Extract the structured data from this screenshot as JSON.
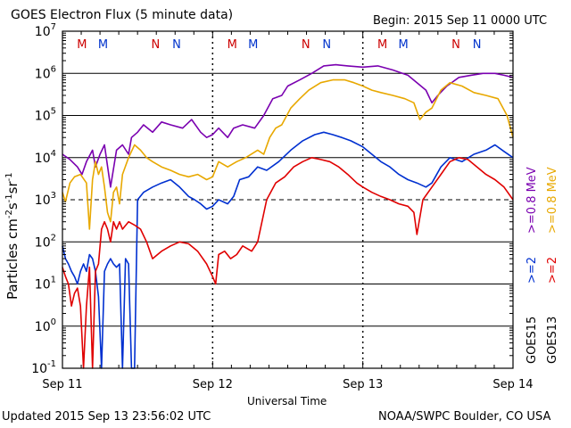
{
  "header": {
    "title": "GOES Electron Flux (5 minute data)",
    "begin": "Begin: 2015 Sep 11 0000 UTC"
  },
  "footer": {
    "updated": "Updated 2015 Sep 13 23:56:02 UTC",
    "credit": "NOAA/SWPC Boulder, CO USA"
  },
  "legend": {
    "goes15": "GOES15",
    "goes13": "GOES13",
    "g15_low": ">=2",
    "g15_high": ">=0.8 MeV",
    "g13_low": ">=2",
    "g13_high": ">=0.8 MeV"
  },
  "chart_data": {
    "type": "line",
    "title": "GOES Electron Flux (5 minute data)",
    "xlabel": "Universal Time",
    "ylabel": "Particles cm^-2 s^-1 sr^-1",
    "yscale": "log",
    "ylim": [
      0.1,
      10000000
    ],
    "xlim_days": [
      0,
      3
    ],
    "x_tick_labels": [
      "Sep 11",
      "Sep 12",
      "Sep 13",
      "Sep 14"
    ],
    "y_ticks": [
      {
        "base": "10",
        "exp": "-1"
      },
      {
        "base": "10",
        "exp": "0"
      },
      {
        "base": "10",
        "exp": "1"
      },
      {
        "base": "10",
        "exp": "2"
      },
      {
        "base": "10",
        "exp": "3"
      },
      {
        "base": "10",
        "exp": "4"
      },
      {
        "base": "10",
        "exp": "5"
      },
      {
        "base": "10",
        "exp": "6"
      },
      {
        "base": "10",
        "exp": "7"
      }
    ],
    "threshold": 1000,
    "markers": [
      {
        "label": "M",
        "day": 0.13,
        "color": "#cc0000"
      },
      {
        "label": "M",
        "day": 0.27,
        "color": "#0033cc"
      },
      {
        "label": "N",
        "day": 0.62,
        "color": "#cc0000"
      },
      {
        "label": "N",
        "day": 0.76,
        "color": "#0033cc"
      },
      {
        "label": "M",
        "day": 1.13,
        "color": "#cc0000"
      },
      {
        "label": "M",
        "day": 1.27,
        "color": "#0033cc"
      },
      {
        "label": "N",
        "day": 1.62,
        "color": "#cc0000"
      },
      {
        "label": "N",
        "day": 1.76,
        "color": "#0033cc"
      },
      {
        "label": "M",
        "day": 2.13,
        "color": "#cc0000"
      },
      {
        "label": "M",
        "day": 2.27,
        "color": "#0033cc"
      },
      {
        "label": "N",
        "day": 2.62,
        "color": "#cc0000"
      },
      {
        "label": "N",
        "day": 2.76,
        "color": "#0033cc"
      }
    ],
    "series": [
      {
        "name": "GOES15 >=0.8 MeV",
        "color": "#7a00b0",
        "points": [
          [
            0,
            12000
          ],
          [
            0.05,
            9000
          ],
          [
            0.1,
            6000
          ],
          [
            0.13,
            4000
          ],
          [
            0.16,
            8000
          ],
          [
            0.2,
            15000
          ],
          [
            0.22,
            6000
          ],
          [
            0.25,
            12000
          ],
          [
            0.28,
            20000
          ],
          [
            0.32,
            2000
          ],
          [
            0.36,
            15000
          ],
          [
            0.4,
            20000
          ],
          [
            0.44,
            12000
          ],
          [
            0.46,
            30000
          ],
          [
            0.5,
            40000
          ],
          [
            0.54,
            60000
          ],
          [
            0.6,
            40000
          ],
          [
            0.66,
            70000
          ],
          [
            0.72,
            60000
          ],
          [
            0.8,
            50000
          ],
          [
            0.86,
            80000
          ],
          [
            0.92,
            40000
          ],
          [
            0.96,
            30000
          ],
          [
            1.0,
            35000
          ],
          [
            1.04,
            50000
          ],
          [
            1.1,
            30000
          ],
          [
            1.14,
            50000
          ],
          [
            1.2,
            60000
          ],
          [
            1.28,
            50000
          ],
          [
            1.34,
            100000
          ],
          [
            1.4,
            250000
          ],
          [
            1.46,
            300000
          ],
          [
            1.5,
            500000
          ],
          [
            1.58,
            700000
          ],
          [
            1.66,
            1000000
          ],
          [
            1.74,
            1500000
          ],
          [
            1.82,
            1600000
          ],
          [
            1.9,
            1500000
          ],
          [
            2.0,
            1400000
          ],
          [
            2.1,
            1500000
          ],
          [
            2.2,
            1200000
          ],
          [
            2.3,
            900000
          ],
          [
            2.36,
            600000
          ],
          [
            2.42,
            400000
          ],
          [
            2.46,
            200000
          ],
          [
            2.5,
            300000
          ],
          [
            2.56,
            500000
          ],
          [
            2.64,
            800000
          ],
          [
            2.72,
            900000
          ],
          [
            2.8,
            1000000
          ],
          [
            2.88,
            1000000
          ],
          [
            2.94,
            900000
          ],
          [
            3.0,
            800000
          ]
        ]
      },
      {
        "name": "GOES13 >=0.8 MeV",
        "color": "#e8a800",
        "points": [
          [
            0,
            1500
          ],
          [
            0.02,
            900
          ],
          [
            0.05,
            2500
          ],
          [
            0.08,
            3500
          ],
          [
            0.12,
            4000
          ],
          [
            0.16,
            2500
          ],
          [
            0.18,
            200
          ],
          [
            0.2,
            3000
          ],
          [
            0.22,
            8000
          ],
          [
            0.24,
            4000
          ],
          [
            0.26,
            6000
          ],
          [
            0.28,
            2000
          ],
          [
            0.3,
            500
          ],
          [
            0.32,
            300
          ],
          [
            0.34,
            1500
          ],
          [
            0.36,
            2000
          ],
          [
            0.38,
            800
          ],
          [
            0.4,
            4000
          ],
          [
            0.44,
            10000
          ],
          [
            0.48,
            20000
          ],
          [
            0.52,
            15000
          ],
          [
            0.56,
            10000
          ],
          [
            0.6,
            8000
          ],
          [
            0.66,
            6000
          ],
          [
            0.72,
            5000
          ],
          [
            0.78,
            4000
          ],
          [
            0.84,
            3500
          ],
          [
            0.9,
            4000
          ],
          [
            0.96,
            3000
          ],
          [
            1.0,
            3500
          ],
          [
            1.04,
            8000
          ],
          [
            1.1,
            6000
          ],
          [
            1.16,
            8000
          ],
          [
            1.22,
            10000
          ],
          [
            1.3,
            15000
          ],
          [
            1.34,
            12000
          ],
          [
            1.38,
            30000
          ],
          [
            1.42,
            50000
          ],
          [
            1.46,
            60000
          ],
          [
            1.52,
            150000
          ],
          [
            1.58,
            250000
          ],
          [
            1.64,
            400000
          ],
          [
            1.72,
            600000
          ],
          [
            1.8,
            700000
          ],
          [
            1.88,
            700000
          ],
          [
            1.94,
            600000
          ],
          [
            2.0,
            500000
          ],
          [
            2.06,
            400000
          ],
          [
            2.12,
            350000
          ],
          [
            2.2,
            300000
          ],
          [
            2.28,
            250000
          ],
          [
            2.34,
            200000
          ],
          [
            2.38,
            80000
          ],
          [
            2.42,
            120000
          ],
          [
            2.46,
            150000
          ],
          [
            2.52,
            400000
          ],
          [
            2.58,
            600000
          ],
          [
            2.66,
            500000
          ],
          [
            2.74,
            350000
          ],
          [
            2.82,
            300000
          ],
          [
            2.9,
            250000
          ],
          [
            2.96,
            100000
          ],
          [
            3.0,
            30000
          ]
        ]
      },
      {
        "name": "GOES15 >=2 MeV",
        "color": "#0030d0",
        "points": [
          [
            0,
            80
          ],
          [
            0.02,
            40
          ],
          [
            0.04,
            30
          ],
          [
            0.06,
            20
          ],
          [
            0.08,
            15
          ],
          [
            0.1,
            10
          ],
          [
            0.12,
            20
          ],
          [
            0.14,
            30
          ],
          [
            0.16,
            20
          ],
          [
            0.18,
            50
          ],
          [
            0.2,
            40
          ],
          [
            0.22,
            20
          ],
          [
            0.24,
            5
          ],
          [
            0.26,
            0.1
          ],
          [
            0.28,
            20
          ],
          [
            0.3,
            30
          ],
          [
            0.32,
            40
          ],
          [
            0.34,
            30
          ],
          [
            0.36,
            25
          ],
          [
            0.38,
            30
          ],
          [
            0.4,
            0.1
          ],
          [
            0.42,
            40
          ],
          [
            0.44,
            30
          ],
          [
            0.46,
            0.1
          ],
          [
            0.48,
            0.1
          ],
          [
            0.5,
            1000
          ],
          [
            0.54,
            1500
          ],
          [
            0.6,
            2000
          ],
          [
            0.66,
            2500
          ],
          [
            0.72,
            3000
          ],
          [
            0.78,
            2000
          ],
          [
            0.84,
            1200
          ],
          [
            0.88,
            1000
          ],
          [
            0.92,
            800
          ],
          [
            0.96,
            600
          ],
          [
            1.0,
            700
          ],
          [
            1.04,
            1000
          ],
          [
            1.1,
            800
          ],
          [
            1.14,
            1200
          ],
          [
            1.18,
            3000
          ],
          [
            1.24,
            3500
          ],
          [
            1.3,
            6000
          ],
          [
            1.36,
            5000
          ],
          [
            1.44,
            8000
          ],
          [
            1.52,
            15000
          ],
          [
            1.6,
            25000
          ],
          [
            1.68,
            35000
          ],
          [
            1.74,
            40000
          ],
          [
            1.8,
            35000
          ],
          [
            1.86,
            30000
          ],
          [
            1.92,
            25000
          ],
          [
            2.0,
            18000
          ],
          [
            2.06,
            12000
          ],
          [
            2.12,
            8000
          ],
          [
            2.18,
            6000
          ],
          [
            2.24,
            4000
          ],
          [
            2.3,
            3000
          ],
          [
            2.36,
            2500
          ],
          [
            2.42,
            2000
          ],
          [
            2.46,
            2500
          ],
          [
            2.52,
            6000
          ],
          [
            2.58,
            10000
          ],
          [
            2.66,
            8000
          ],
          [
            2.74,
            12000
          ],
          [
            2.82,
            15000
          ],
          [
            2.88,
            20000
          ],
          [
            2.94,
            14000
          ],
          [
            3.0,
            10000
          ]
        ]
      },
      {
        "name": "GOES13 >=2 MeV",
        "color": "#e00000",
        "points": [
          [
            0,
            25
          ],
          [
            0.02,
            15
          ],
          [
            0.04,
            10
          ],
          [
            0.06,
            3
          ],
          [
            0.08,
            6
          ],
          [
            0.1,
            8
          ],
          [
            0.12,
            3
          ],
          [
            0.14,
            0.1
          ],
          [
            0.16,
            3
          ],
          [
            0.18,
            25
          ],
          [
            0.2,
            0.1
          ],
          [
            0.22,
            20
          ],
          [
            0.24,
            30
          ],
          [
            0.26,
            200
          ],
          [
            0.28,
            300
          ],
          [
            0.3,
            200
          ],
          [
            0.32,
            100
          ],
          [
            0.34,
            300
          ],
          [
            0.36,
            200
          ],
          [
            0.38,
            300
          ],
          [
            0.4,
            200
          ],
          [
            0.44,
            300
          ],
          [
            0.48,
            250
          ],
          [
            0.52,
            200
          ],
          [
            0.56,
            100
          ],
          [
            0.6,
            40
          ],
          [
            0.66,
            60
          ],
          [
            0.72,
            80
          ],
          [
            0.78,
            100
          ],
          [
            0.84,
            90
          ],
          [
            0.9,
            60
          ],
          [
            0.96,
            30
          ],
          [
            1.0,
            15
          ],
          [
            1.02,
            10
          ],
          [
            1.04,
            50
          ],
          [
            1.08,
            60
          ],
          [
            1.12,
            40
          ],
          [
            1.16,
            50
          ],
          [
            1.2,
            80
          ],
          [
            1.26,
            60
          ],
          [
            1.3,
            100
          ],
          [
            1.36,
            1000
          ],
          [
            1.42,
            2500
          ],
          [
            1.48,
            3500
          ],
          [
            1.54,
            6000
          ],
          [
            1.6,
            8000
          ],
          [
            1.66,
            10000
          ],
          [
            1.72,
            9000
          ],
          [
            1.78,
            8000
          ],
          [
            1.84,
            6000
          ],
          [
            1.9,
            4000
          ],
          [
            1.96,
            2500
          ],
          [
            2.0,
            2000
          ],
          [
            2.06,
            1500
          ],
          [
            2.12,
            1200
          ],
          [
            2.18,
            1000
          ],
          [
            2.24,
            800
          ],
          [
            2.3,
            700
          ],
          [
            2.34,
            500
          ],
          [
            2.36,
            150
          ],
          [
            2.4,
            1000
          ],
          [
            2.46,
            2000
          ],
          [
            2.52,
            4000
          ],
          [
            2.58,
            8000
          ],
          [
            2.64,
            10000
          ],
          [
            2.7,
            9000
          ],
          [
            2.76,
            6000
          ],
          [
            2.82,
            4000
          ],
          [
            2.88,
            3000
          ],
          [
            2.94,
            2000
          ],
          [
            3.0,
            1000
          ]
        ]
      }
    ]
  }
}
